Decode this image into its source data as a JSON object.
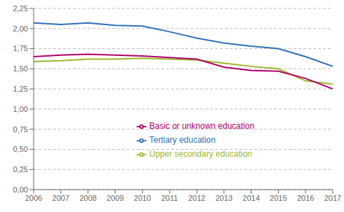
{
  "chart_data": {
    "type": "line",
    "x": [
      2006,
      2007,
      2008,
      2009,
      2010,
      2011,
      2012,
      2013,
      2014,
      2015,
      2016,
      2017
    ],
    "series": [
      {
        "name": "Tertiary education",
        "color": "#3070b8",
        "values": [
          2.07,
          2.05,
          2.07,
          2.04,
          2.03,
          1.96,
          1.88,
          1.82,
          1.78,
          1.75,
          1.65,
          1.53
        ]
      },
      {
        "name": "Upper secondary education",
        "color": "#9bb828",
        "values": [
          1.59,
          1.6,
          1.62,
          1.62,
          1.63,
          1.62,
          1.61,
          1.57,
          1.53,
          1.5,
          1.35,
          1.31
        ]
      },
      {
        "name": "Basic or unknown education",
        "color": "#b0006a",
        "values": [
          1.65,
          1.67,
          1.68,
          1.67,
          1.66,
          1.64,
          1.62,
          1.52,
          1.48,
          1.47,
          1.38,
          1.25
        ]
      }
    ],
    "xlim": [
      2006,
      2017
    ],
    "xticks": [
      2006,
      2007,
      2008,
      2009,
      2010,
      2011,
      2012,
      2013,
      2014,
      2015,
      2016,
      2017
    ],
    "ylim": [
      0,
      2.25
    ],
    "yticks": [
      {
        "value": 0.0,
        "label": "0,00"
      },
      {
        "value": 0.25,
        "label": "0,25"
      },
      {
        "value": 0.5,
        "label": "0,50"
      },
      {
        "value": 0.75,
        "label": "0,75"
      },
      {
        "value": 1.0,
        "label": "1,00"
      },
      {
        "value": 1.25,
        "label": "1,25"
      },
      {
        "value": 1.5,
        "label": "1,50"
      },
      {
        "value": 1.75,
        "label": "1,75"
      },
      {
        "value": 2.0,
        "label": "2,00"
      },
      {
        "value": 2.25,
        "label": "2,25"
      }
    ],
    "grid": true,
    "legend": "lower center"
  }
}
